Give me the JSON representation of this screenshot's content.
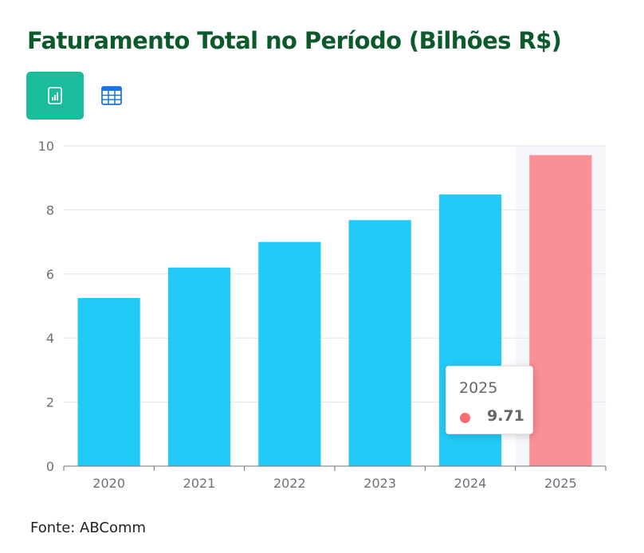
{
  "title": "Faturamento Total no Período (Bilhões R$)",
  "toolbar": {
    "chart_view_icon": "bar-chart-icon",
    "table_view_icon": "table-icon"
  },
  "colors": {
    "title": "#0c5a2c",
    "toggle_active": "#1abc9c",
    "bar": "#22cbf7",
    "bar_highlight": "#f89095",
    "tooltip_dot": "#fd6b71",
    "hover_band": "#f6f7fb"
  },
  "chart_data": {
    "type": "bar",
    "categories": [
      "2020",
      "2021",
      "2022",
      "2023",
      "2024",
      "2025"
    ],
    "values": [
      5.25,
      6.2,
      7.0,
      7.68,
      8.48,
      9.71
    ],
    "xlabel": "",
    "ylabel": "",
    "ylim": [
      0,
      10
    ],
    "yticks": [
      "0",
      "2",
      "4",
      "6",
      "8",
      "10"
    ],
    "grid": true,
    "highlighted_category": "2025"
  },
  "tooltip": {
    "category": "2025",
    "value": "9.71"
  },
  "source": "Fonte: ABComm"
}
